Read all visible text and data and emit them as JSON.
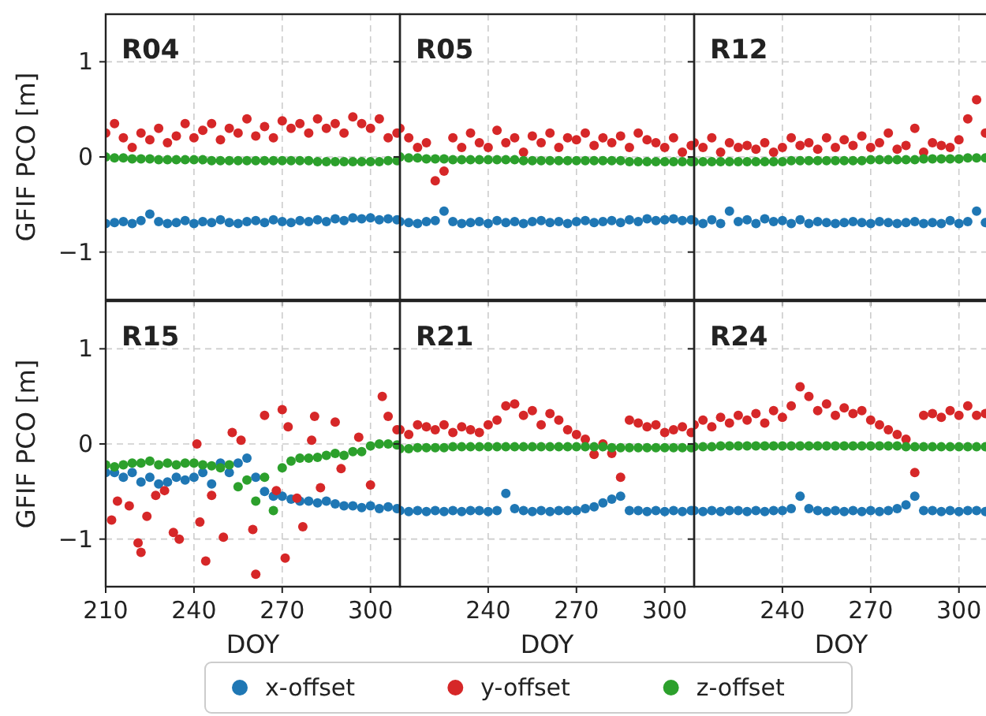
{
  "chart_data": [
    {
      "type": "scatter",
      "title": "R04",
      "ylabel": "GFIF PCO [m]",
      "xlim": [
        210,
        310
      ],
      "xticks": [
        210,
        240,
        270,
        300
      ],
      "ylim": [
        -1.5,
        1.5
      ],
      "yticks": [
        {
          "value": -1,
          "label": "−1"
        },
        0,
        1
      ],
      "grid": true,
      "marker": "circle",
      "tick_labels": "y",
      "legend": "bottom",
      "x": [
        210,
        213,
        216,
        219,
        222,
        225,
        228,
        231,
        234,
        237,
        240,
        243,
        246,
        249,
        252,
        255,
        258,
        261,
        264,
        267,
        270,
        273,
        276,
        279,
        282,
        285,
        288,
        291,
        294,
        297,
        300,
        303,
        306,
        309
      ],
      "series": [
        {
          "name": "x-offset",
          "color": "#1f77b4",
          "values": [
            -0.7,
            -0.69,
            -0.68,
            -0.7,
            -0.67,
            -0.6,
            -0.68,
            -0.7,
            -0.69,
            -0.67,
            -0.7,
            -0.68,
            -0.69,
            -0.66,
            -0.69,
            -0.7,
            -0.68,
            -0.67,
            -0.69,
            -0.66,
            -0.68,
            -0.69,
            -0.67,
            -0.68,
            -0.66,
            -0.68,
            -0.65,
            -0.67,
            -0.64,
            -0.65,
            -0.64,
            -0.66,
            -0.65,
            -0.66
          ]
        },
        {
          "name": "y-offset",
          "color": "#d62728",
          "values": [
            0.25,
            0.35,
            0.2,
            0.1,
            0.25,
            0.18,
            0.3,
            0.15,
            0.22,
            0.35,
            0.2,
            0.28,
            0.35,
            0.18,
            0.3,
            0.25,
            0.4,
            0.22,
            0.32,
            0.2,
            0.38,
            0.3,
            0.35,
            0.25,
            0.4,
            0.3,
            0.35,
            0.25,
            0.42,
            0.35,
            0.3,
            0.4,
            0.2,
            0.25
          ]
        },
        {
          "name": "z-offset",
          "color": "#2ca02c",
          "values": [
            0,
            -0.01,
            -0.01,
            -0.02,
            -0.02,
            -0.02,
            -0.03,
            -0.03,
            -0.03,
            -0.03,
            -0.03,
            -0.03,
            -0.04,
            -0.04,
            -0.04,
            -0.04,
            -0.04,
            -0.04,
            -0.04,
            -0.04,
            -0.04,
            -0.04,
            -0.04,
            -0.04,
            -0.05,
            -0.05,
            -0.05,
            -0.05,
            -0.05,
            -0.05,
            -0.05,
            -0.05,
            -0.04,
            -0.04
          ]
        }
      ]
    },
    {
      "type": "scatter",
      "title": "R05",
      "xlim": [
        210,
        310
      ],
      "xticks": [
        240,
        270,
        300
      ],
      "ylim": [
        -1.5,
        1.5
      ],
      "yticks": [
        -1,
        0,
        1
      ],
      "grid": true,
      "marker": "circle",
      "tick_labels": false,
      "x": [
        210,
        213,
        216,
        219,
        222,
        225,
        228,
        231,
        234,
        237,
        240,
        243,
        246,
        249,
        252,
        255,
        258,
        261,
        264,
        267,
        270,
        273,
        276,
        279,
        282,
        285,
        288,
        291,
        294,
        297,
        300,
        303,
        306,
        309
      ],
      "series": [
        {
          "color": "#1f77b4",
          "values": [
            -0.68,
            -0.69,
            -0.7,
            -0.68,
            -0.67,
            -0.57,
            -0.68,
            -0.7,
            -0.69,
            -0.68,
            -0.7,
            -0.67,
            -0.69,
            -0.68,
            -0.7,
            -0.68,
            -0.67,
            -0.69,
            -0.68,
            -0.7,
            -0.68,
            -0.67,
            -0.69,
            -0.68,
            -0.67,
            -0.69,
            -0.66,
            -0.68,
            -0.65,
            -0.67,
            -0.66,
            -0.65,
            -0.67,
            -0.66
          ]
        },
        {
          "color": "#d62728",
          "values": [
            0.3,
            0.2,
            0.1,
            0.15,
            -0.25,
            -0.15,
            0.2,
            0.1,
            0.25,
            0.15,
            0.1,
            0.28,
            0.15,
            0.2,
            0.05,
            0.22,
            0.15,
            0.25,
            0.1,
            0.2,
            0.18,
            0.25,
            0.12,
            0.2,
            0.15,
            0.22,
            0.1,
            0.25,
            0.18,
            0.15,
            0.1,
            0.2,
            0.05,
            0.12
          ]
        },
        {
          "color": "#2ca02c",
          "values": [
            0,
            -0.01,
            -0.01,
            -0.02,
            -0.02,
            -0.02,
            -0.03,
            -0.03,
            -0.03,
            -0.03,
            -0.03,
            -0.03,
            -0.03,
            -0.03,
            -0.04,
            -0.04,
            -0.04,
            -0.04,
            -0.04,
            -0.04,
            -0.04,
            -0.04,
            -0.04,
            -0.04,
            -0.04,
            -0.04,
            -0.05,
            -0.05,
            -0.05,
            -0.05,
            -0.05,
            -0.05,
            -0.05,
            -0.05
          ]
        }
      ]
    },
    {
      "type": "scatter",
      "title": "R12",
      "xlim": [
        210,
        310
      ],
      "xticks": [
        240,
        270,
        300
      ],
      "ylim": [
        -1.5,
        1.5
      ],
      "yticks": [
        -1,
        0,
        1
      ],
      "grid": true,
      "marker": "circle",
      "tick_labels": false,
      "x": [
        210,
        213,
        216,
        219,
        222,
        225,
        228,
        231,
        234,
        237,
        240,
        243,
        246,
        249,
        252,
        255,
        258,
        261,
        264,
        267,
        270,
        273,
        276,
        279,
        282,
        285,
        288,
        291,
        294,
        297,
        300,
        303,
        306,
        309
      ],
      "series": [
        {
          "color": "#1f77b4",
          "values": [
            -0.68,
            -0.7,
            -0.66,
            -0.7,
            -0.57,
            -0.68,
            -0.66,
            -0.7,
            -0.65,
            -0.68,
            -0.67,
            -0.7,
            -0.66,
            -0.7,
            -0.68,
            -0.69,
            -0.7,
            -0.69,
            -0.68,
            -0.69,
            -0.7,
            -0.68,
            -0.69,
            -0.7,
            -0.69,
            -0.68,
            -0.7,
            -0.69,
            -0.7,
            -0.67,
            -0.7,
            -0.68,
            -0.57,
            -0.69
          ]
        },
        {
          "color": "#d62728",
          "values": [
            0.15,
            0.1,
            0.2,
            0.05,
            0.15,
            0.1,
            0.12,
            0.08,
            0.15,
            0.05,
            0.1,
            0.2,
            0.12,
            0.15,
            0.08,
            0.2,
            0.1,
            0.18,
            0.12,
            0.22,
            0.1,
            0.15,
            0.25,
            0.08,
            0.12,
            0.3,
            0.05,
            0.15,
            0.12,
            0.1,
            0.18,
            0.4,
            0.6,
            0.25
          ]
        },
        {
          "color": "#2ca02c",
          "values": [
            -0.05,
            -0.05,
            -0.05,
            -0.05,
            -0.05,
            -0.05,
            -0.05,
            -0.05,
            -0.05,
            -0.05,
            -0.05,
            -0.04,
            -0.04,
            -0.04,
            -0.04,
            -0.04,
            -0.04,
            -0.04,
            -0.04,
            -0.04,
            -0.03,
            -0.03,
            -0.03,
            -0.03,
            -0.03,
            -0.03,
            -0.02,
            -0.02,
            -0.02,
            -0.02,
            -0.02,
            -0.01,
            -0.01,
            -0.01
          ]
        }
      ]
    },
    {
      "type": "scatter",
      "title": "R15",
      "xlabel": "DOY",
      "ylabel": "GFIF PCO [m]",
      "xlim": [
        210,
        310
      ],
      "xticks": [
        210,
        240,
        270,
        300
      ],
      "ylim": [
        -1.5,
        1.5
      ],
      "yticks": [
        {
          "value": -1,
          "label": "−1"
        },
        0,
        1
      ],
      "grid": true,
      "marker": "circle",
      "x": [
        210,
        213,
        216,
        219,
        222,
        225,
        228,
        231,
        234,
        237,
        240,
        243,
        246,
        249,
        252,
        255,
        258,
        261,
        264,
        267,
        270,
        273,
        276,
        279,
        282,
        285,
        288,
        291,
        294,
        297,
        300,
        303,
        306,
        309
      ],
      "series": [
        {
          "color": "#1f77b4",
          "values": [
            -0.3,
            -0.3,
            -0.35,
            -0.3,
            -0.4,
            -0.35,
            -0.42,
            -0.4,
            -0.35,
            -0.38,
            -0.35,
            -0.3,
            -0.42,
            -0.2,
            -0.3,
            -0.2,
            -0.15,
            -0.35,
            -0.5,
            -0.55,
            -0.55,
            -0.58,
            -0.6,
            -0.6,
            -0.62,
            -0.6,
            -0.63,
            -0.65,
            -0.65,
            -0.67,
            -0.65,
            -0.68,
            -0.66,
            -0.68
          ]
        },
        {
          "color": "#d62728",
          "x": [
            212,
            214,
            218,
            221,
            222,
            224,
            227,
            230,
            233,
            235,
            241,
            242,
            244,
            246,
            250,
            253,
            256,
            260,
            261,
            264,
            268,
            270,
            271,
            272,
            275,
            277,
            280,
            281,
            283,
            288,
            290,
            296,
            300,
            304,
            306,
            309
          ],
          "values": [
            -0.8,
            -0.6,
            -0.65,
            -1.04,
            -1.14,
            -0.76,
            -0.54,
            -0.49,
            -0.93,
            -1.0,
            0,
            -0.82,
            -1.23,
            -0.54,
            -0.98,
            0.12,
            0.04,
            -0.9,
            -1.37,
            0.3,
            -0.49,
            0.36,
            -1.2,
            0.18,
            -0.57,
            -0.87,
            0.04,
            0.29,
            -0.46,
            0.23,
            -0.26,
            0.07,
            -0.43,
            0.5,
            0.29,
            0.15
          ]
        },
        {
          "color": "#2ca02c",
          "values": [
            -0.22,
            -0.24,
            -0.22,
            -0.2,
            -0.2,
            -0.18,
            -0.22,
            -0.2,
            -0.22,
            -0.2,
            -0.2,
            -0.22,
            -0.23,
            -0.25,
            -0.22,
            -0.45,
            -0.38,
            -0.6,
            -0.35,
            -0.7,
            -0.25,
            -0.18,
            -0.15,
            -0.15,
            -0.14,
            -0.12,
            -0.1,
            -0.12,
            -0.08,
            -0.08,
            -0.02,
            0,
            0,
            -0.01
          ]
        }
      ]
    },
    {
      "type": "scatter",
      "title": "R21",
      "xlabel": "DOY",
      "xlim": [
        210,
        310
      ],
      "xticks": [
        240,
        270,
        300
      ],
      "ylim": [
        -1.5,
        1.5
      ],
      "yticks": [
        -1,
        0,
        1
      ],
      "grid": true,
      "marker": "circle",
      "tick_labels": "x",
      "x": [
        210,
        213,
        216,
        219,
        222,
        225,
        228,
        231,
        234,
        237,
        240,
        243,
        246,
        249,
        252,
        255,
        258,
        261,
        264,
        267,
        270,
        273,
        276,
        279,
        282,
        285,
        288,
        291,
        294,
        297,
        300,
        303,
        306,
        309
      ],
      "series": [
        {
          "color": "#1f77b4",
          "values": [
            -0.7,
            -0.71,
            -0.7,
            -0.71,
            -0.7,
            -0.71,
            -0.7,
            -0.71,
            -0.7,
            -0.7,
            -0.71,
            -0.7,
            -0.52,
            -0.68,
            -0.7,
            -0.71,
            -0.7,
            -0.71,
            -0.7,
            -0.7,
            -0.7,
            -0.68,
            -0.66,
            -0.62,
            -0.58,
            -0.55,
            -0.7,
            -0.7,
            -0.71,
            -0.7,
            -0.71,
            -0.7,
            -0.71,
            -0.7
          ]
        },
        {
          "color": "#d62728",
          "values": [
            0.15,
            0.1,
            0.2,
            0.18,
            0.15,
            0.2,
            0.12,
            0.18,
            0.15,
            0.12,
            0.2,
            0.25,
            0.4,
            0.42,
            0.3,
            0.35,
            0.2,
            0.32,
            0.25,
            0.15,
            0.1,
            0.05,
            -0.11,
            0,
            -0.1,
            -0.35,
            0.25,
            0.22,
            0.18,
            0.2,
            0.12,
            0.15,
            0.18,
            0.12
          ]
        },
        {
          "color": "#2ca02c",
          "values": [
            -0.05,
            -0.05,
            -0.04,
            -0.04,
            -0.04,
            -0.04,
            -0.03,
            -0.03,
            -0.03,
            -0.03,
            -0.03,
            -0.03,
            -0.03,
            -0.03,
            -0.03,
            -0.03,
            -0.03,
            -0.03,
            -0.03,
            -0.03,
            -0.03,
            -0.03,
            -0.03,
            -0.03,
            -0.04,
            -0.04,
            -0.04,
            -0.04,
            -0.04,
            -0.04,
            -0.04,
            -0.04,
            -0.04,
            -0.04
          ]
        }
      ]
    },
    {
      "type": "scatter",
      "title": "R24",
      "xlabel": "DOY",
      "xlim": [
        210,
        310
      ],
      "xticks": [
        240,
        270,
        300
      ],
      "ylim": [
        -1.5,
        1.5
      ],
      "yticks": [
        -1,
        0,
        1
      ],
      "grid": true,
      "marker": "circle",
      "tick_labels": "x",
      "x": [
        210,
        213,
        216,
        219,
        222,
        225,
        228,
        231,
        234,
        237,
        240,
        243,
        246,
        249,
        252,
        255,
        258,
        261,
        264,
        267,
        270,
        273,
        276,
        279,
        282,
        285,
        288,
        291,
        294,
        297,
        300,
        303,
        306,
        309
      ],
      "series": [
        {
          "color": "#1f77b4",
          "values": [
            -0.7,
            -0.71,
            -0.7,
            -0.71,
            -0.7,
            -0.7,
            -0.71,
            -0.7,
            -0.71,
            -0.7,
            -0.7,
            -0.68,
            -0.55,
            -0.68,
            -0.7,
            -0.71,
            -0.7,
            -0.71,
            -0.7,
            -0.71,
            -0.7,
            -0.71,
            -0.7,
            -0.68,
            -0.64,
            -0.55,
            -0.7,
            -0.7,
            -0.71,
            -0.7,
            -0.71,
            -0.7,
            -0.7,
            -0.71
          ]
        },
        {
          "color": "#d62728",
          "values": [
            0.2,
            0.25,
            0.18,
            0.28,
            0.22,
            0.3,
            0.25,
            0.32,
            0.22,
            0.35,
            0.28,
            0.4,
            0.6,
            0.5,
            0.35,
            0.42,
            0.3,
            0.38,
            0.32,
            0.35,
            0.25,
            0.2,
            0.15,
            0.1,
            0.05,
            -0.3,
            0.3,
            0.32,
            0.28,
            0.35,
            0.3,
            0.4,
            0.3,
            0.32
          ]
        },
        {
          "color": "#2ca02c",
          "values": [
            -0.03,
            -0.03,
            -0.03,
            -0.02,
            -0.02,
            -0.02,
            -0.02,
            -0.02,
            -0.02,
            -0.02,
            -0.02,
            -0.02,
            -0.02,
            -0.02,
            -0.02,
            -0.02,
            -0.02,
            -0.02,
            -0.02,
            -0.02,
            -0.02,
            -0.02,
            -0.02,
            -0.02,
            -0.03,
            -0.03,
            -0.03,
            -0.03,
            -0.03,
            -0.03,
            -0.03,
            -0.03,
            -0.03,
            -0.03
          ]
        }
      ]
    }
  ]
}
